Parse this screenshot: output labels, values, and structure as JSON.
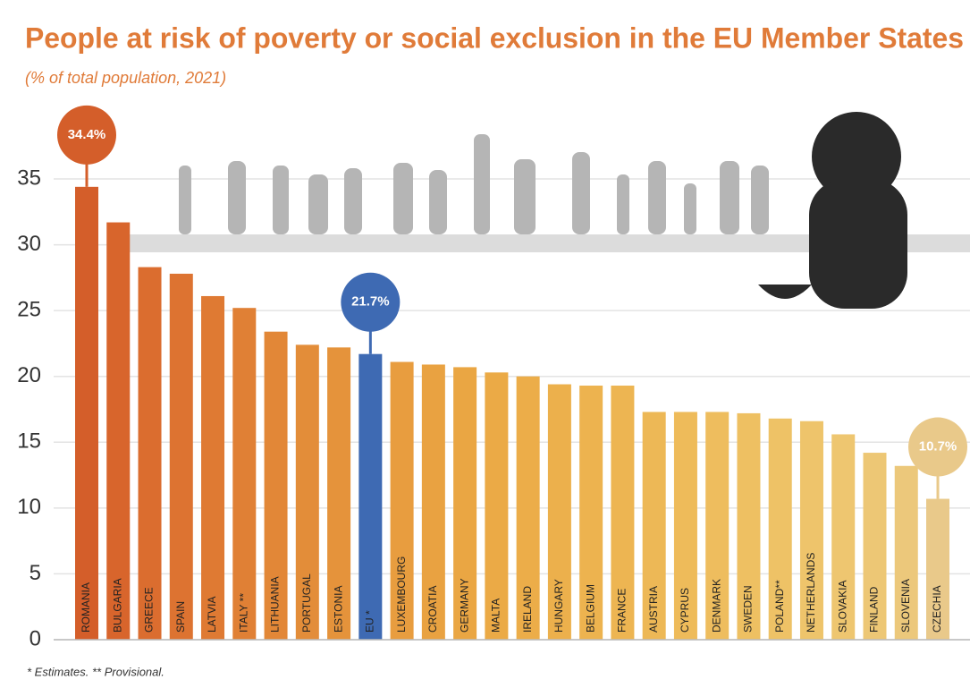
{
  "chart_data": {
    "type": "bar",
    "title": "People at risk of poverty or social exclusion in the EU Member States",
    "subtitle": "(% of total population, 2021)",
    "footnote": "* Estimates. ** Provisional.",
    "categories": [
      "ROMANIA",
      "BULGARIA",
      "GREECE",
      "SPAIN",
      "LATVIA",
      "ITALY **",
      "LITHUANIA",
      "PORTUGAL",
      "ESTONIA",
      "EU *",
      "LUXEMBOURG",
      "CROATIA",
      "GERMANY",
      "MALTA",
      "IRELAND",
      "HUNGARY",
      "BELGIUM",
      "FRANCE",
      "AUSTRIA",
      "CYPRUS",
      "DENMARK",
      "SWEDEN",
      "POLAND**",
      "NETHERLANDS",
      "SLOVAKIA",
      "FINLAND",
      "SLOVENIA",
      "CZECHIA"
    ],
    "values": [
      34.4,
      31.7,
      28.3,
      27.8,
      26.1,
      25.2,
      23.4,
      22.4,
      22.2,
      21.7,
      21.1,
      20.9,
      20.7,
      20.3,
      20.0,
      19.4,
      19.3,
      19.3,
      17.3,
      17.3,
      17.3,
      17.2,
      16.8,
      16.6,
      15.6,
      14.2,
      13.2,
      10.7
    ],
    "value_labels": [
      "34.4%",
      null,
      null,
      null,
      null,
      null,
      null,
      null,
      null,
      "21.7%",
      null,
      null,
      null,
      null,
      null,
      null,
      null,
      null,
      null,
      null,
      null,
      null,
      null,
      null,
      null,
      null,
      null,
      "10.7%"
    ],
    "colors": [
      "#d45e2a",
      "#d8652c",
      "#db6d2f",
      "#dd7331",
      "#df7a33",
      "#e08035",
      "#e28737",
      "#e38d39",
      "#e5933b",
      "#3e6ab3",
      "#e89d3f",
      "#e9a241",
      "#eaa643",
      "#ebaa46",
      "#ecad49",
      "#ecb04c",
      "#edb34f",
      "#edb552",
      "#edb856",
      "#eebb5a",
      "#eebd5e",
      "#eec062",
      "#eec266",
      "#eec46b",
      "#eec670",
      "#edc775",
      "#ecc87b",
      "#e9c98a"
    ],
    "ylim": [
      0,
      35
    ],
    "yticks": [
      0,
      5,
      10,
      15,
      20,
      25,
      30,
      35
    ],
    "grid": true
  }
}
